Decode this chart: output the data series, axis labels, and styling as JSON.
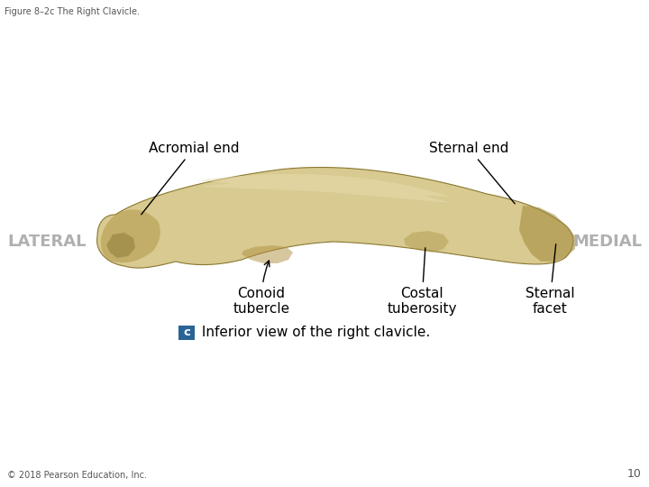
{
  "title": "Figure 8–2c The Right Clavicle.",
  "title_fontsize": 7,
  "title_color": "#555555",
  "background_color": "#ffffff",
  "label_acromial_end": "Acromial end",
  "label_sternal_end": "Sternal end",
  "label_lateral": "LATERAL",
  "label_medial": "MEDIAL",
  "label_conoid": "Conoid\ntubercle",
  "label_costal": "Costal\ntuberosity",
  "label_sternal_facet": "Sternal\nfacet",
  "label_inferior": " Inferior view of the right clavicle.",
  "label_c": "c",
  "label_c_bg": "#2a6496",
  "label_c_color": "#ffffff",
  "footer": "© 2018 Pearson Education, Inc.",
  "footer_fontsize": 7,
  "page_number": "10",
  "lateral_color": "#b0b0b0",
  "medial_color": "#b0b0b0",
  "annotation_fontsize": 11,
  "bone_color_main": "#d8ca90",
  "bone_color_dark": "#a89040",
  "bone_color_med": "#c4b070",
  "bone_color_light": "#e8ddb0"
}
